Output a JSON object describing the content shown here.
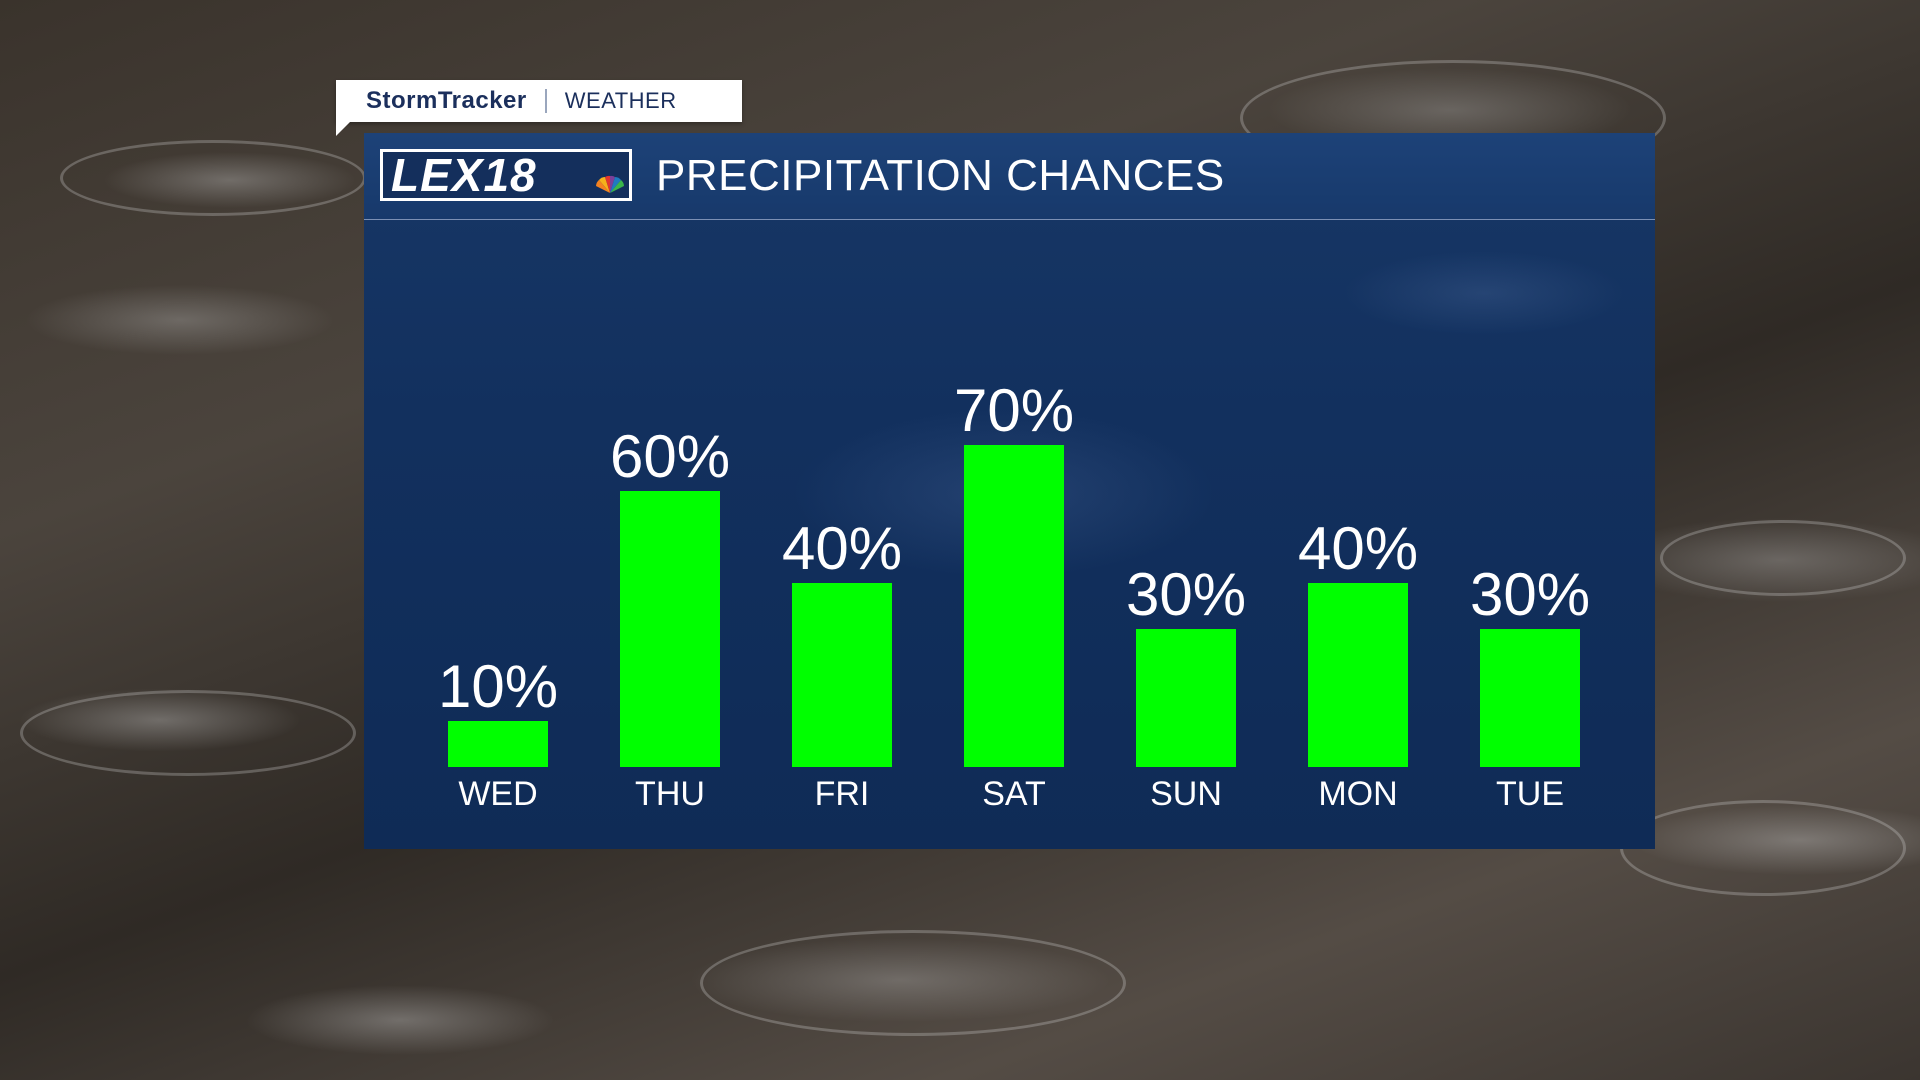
{
  "brand": {
    "name": "StormTracker",
    "section": "WEATHER"
  },
  "panel": {
    "logo_text": "LEX18",
    "logo_icon": "nbc-peacock-icon",
    "title": "PRECIPITATION CHANCES"
  },
  "colors": {
    "bar": "#00ff00",
    "panel": "#12305e",
    "brand_text": "#1b2f5c"
  },
  "chart_data": {
    "type": "bar",
    "title": "PRECIPITATION CHANCES",
    "categories": [
      "WED",
      "THU",
      "FRI",
      "SAT",
      "SUN",
      "MON",
      "TUE"
    ],
    "values": [
      10,
      60,
      40,
      70,
      30,
      40,
      30
    ],
    "value_labels": [
      "10%",
      "60%",
      "40%",
      "70%",
      "30%",
      "40%",
      "30%"
    ],
    "ylim": [
      0,
      100
    ],
    "grid": false,
    "legend": "none"
  }
}
